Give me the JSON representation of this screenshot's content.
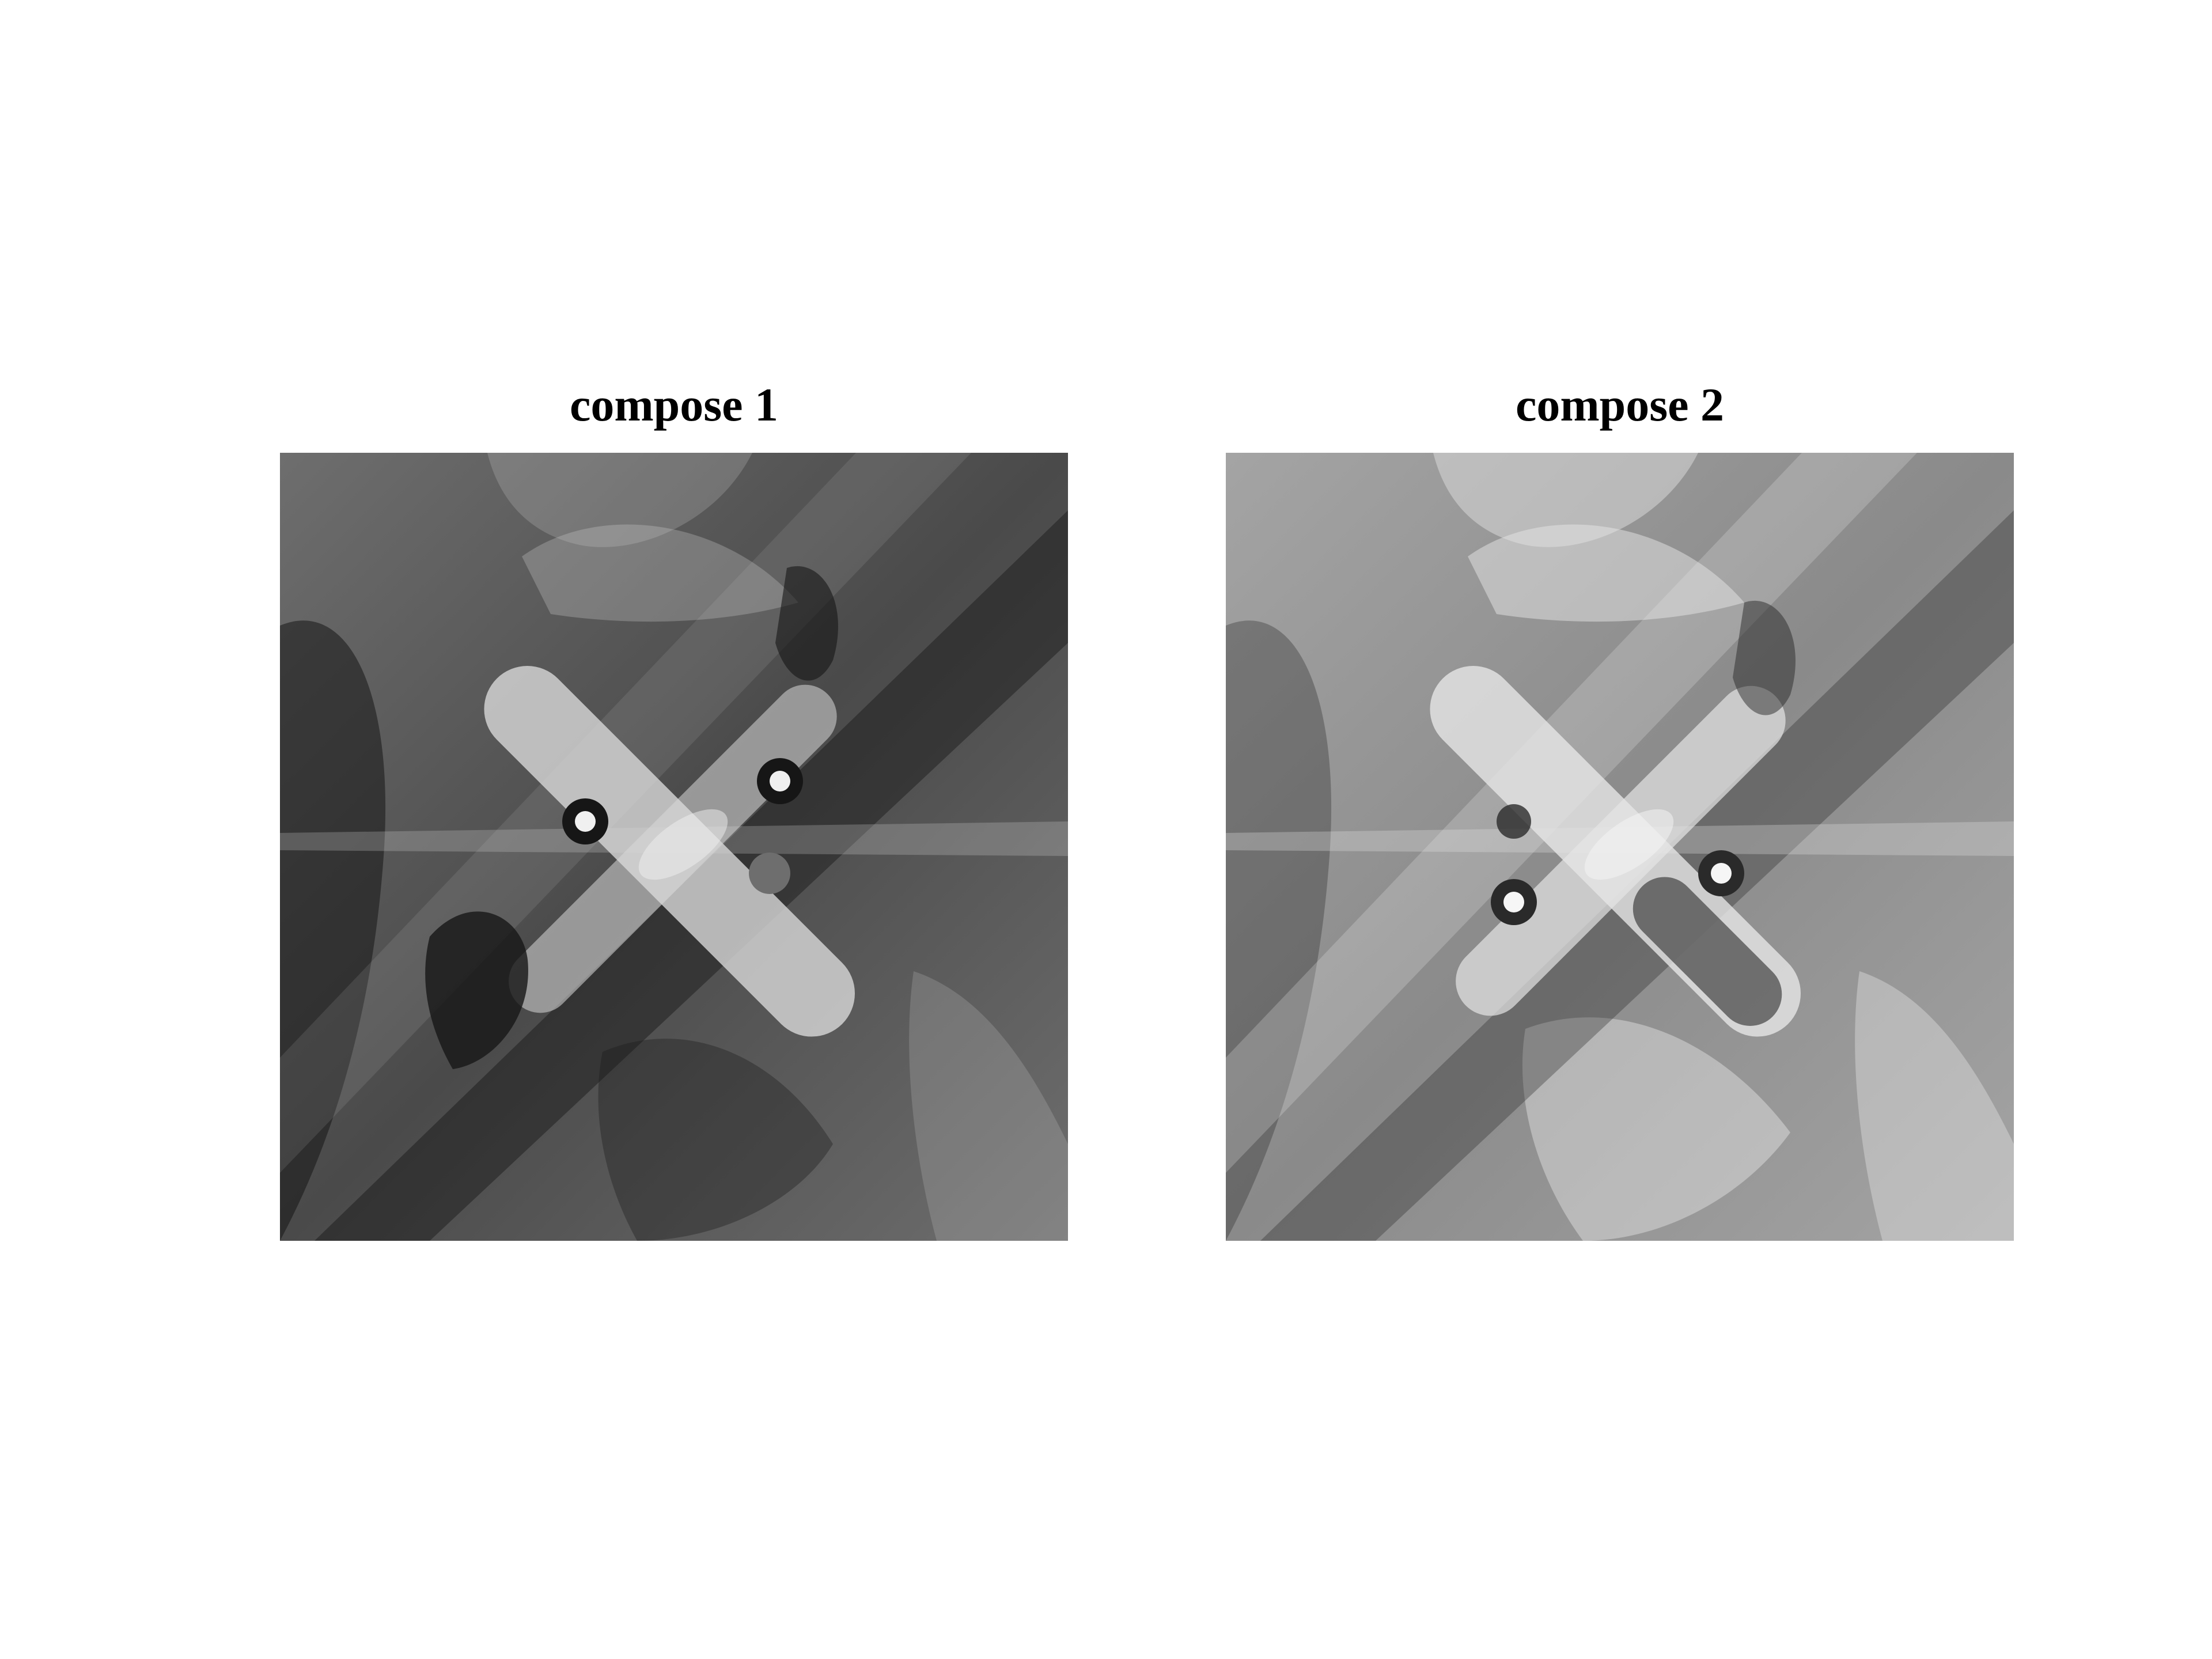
{
  "figure": {
    "panels": [
      {
        "title": "compose 1",
        "image_name": "grayscale-composite-darker",
        "palette": {
          "base": "#4a4a4a",
          "dark": "#161616",
          "mid": "#6e6e6e",
          "light": "#d8d8d8",
          "highlight": "#f0f0f0"
        }
      },
      {
        "title": "compose 2",
        "image_name": "grayscale-composite-lighter",
        "palette": {
          "base": "#8a8a8a",
          "dark": "#2a2a2a",
          "mid": "#a4a4a4",
          "light": "#e6e6e6",
          "highlight": "#f6f6f6"
        }
      }
    ]
  }
}
